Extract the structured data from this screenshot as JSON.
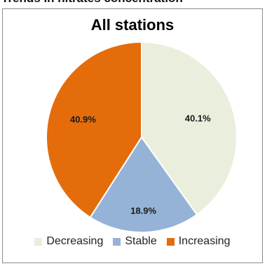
{
  "page_heading": "Trends in nitrates concentration",
  "chart_data": {
    "type": "pie",
    "title": "All stations",
    "slices": [
      {
        "label": "Decreasing",
        "value": 40.1,
        "display": "40.1%",
        "color": "#eaeedc"
      },
      {
        "label": "Stable",
        "value": 18.9,
        "display": "18.9%",
        "color": "#95b3d7"
      },
      {
        "label": "Increasing",
        "value": 40.9,
        "display": "40.9%",
        "color": "#e46c0a"
      }
    ],
    "legend_position": "bottom"
  }
}
